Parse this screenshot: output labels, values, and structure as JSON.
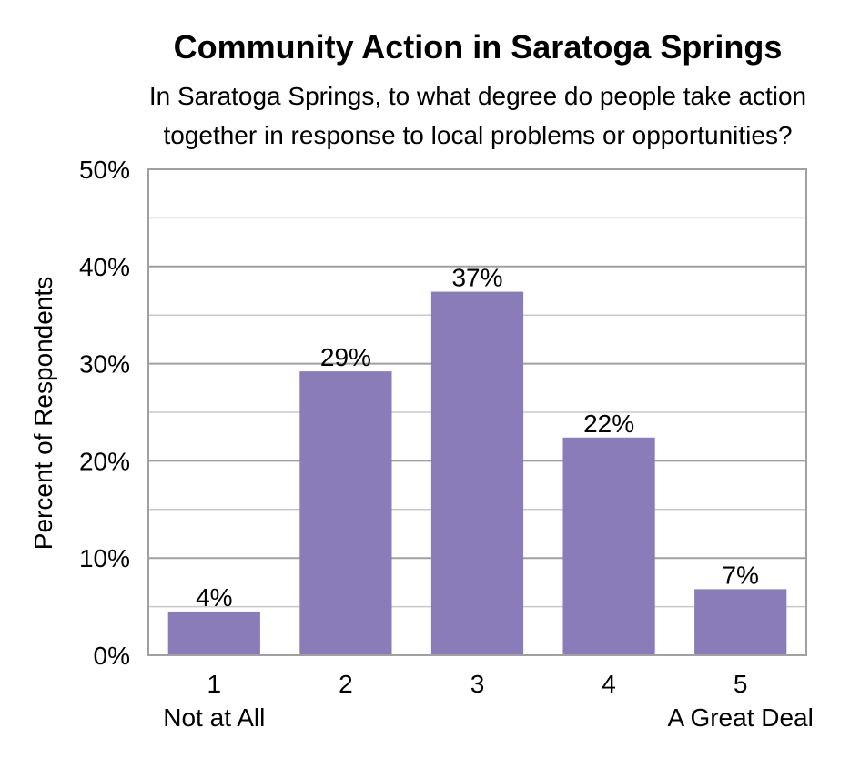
{
  "chart_data": {
    "type": "bar",
    "title": "Community Action in Saratoga Springs",
    "subtitle_lines": [
      "In Saratoga Springs, to what degree do people take action",
      "together in response to local problems or opportunities?"
    ],
    "ylabel": "Percent of Respondents",
    "xlabel": "",
    "categories": [
      "1",
      "2",
      "3",
      "4",
      "5"
    ],
    "category_sublabels": [
      "Not at All",
      "",
      "",
      "",
      "A Great Deal"
    ],
    "values": [
      4.5,
      29.2,
      37.4,
      22.4,
      6.8
    ],
    "value_labels": [
      "4%",
      "29%",
      "37%",
      "22%",
      "7%"
    ],
    "ylim": [
      0,
      50
    ],
    "y_ticks": [
      0,
      10,
      20,
      30,
      40,
      50
    ],
    "y_tick_labels": [
      "0%",
      "10%",
      "20%",
      "30%",
      "40%",
      "50%"
    ],
    "minor_gridlines_every": 5,
    "grid": true,
    "legend": "none",
    "bar_color": "#8a7cb8",
    "grid_color": "#c8c8c8",
    "major_grid_color": "#a0a0a0"
  }
}
